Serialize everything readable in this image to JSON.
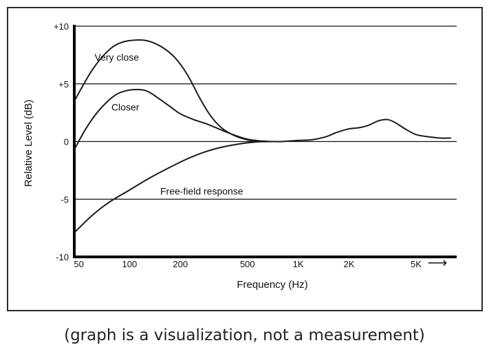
{
  "chart_data": {
    "type": "line",
    "title": "",
    "xlabel": "Frequency (Hz)",
    "ylabel": "Relative Level (dB)",
    "x_scale": "log",
    "xlim": [
      47,
      8700
    ],
    "ylim": [
      -10,
      10
    ],
    "x_ticks": [
      {
        "value": 50,
        "label": "50"
      },
      {
        "value": 100,
        "label": "100"
      },
      {
        "value": 200,
        "label": "200"
      },
      {
        "value": 500,
        "label": "500"
      },
      {
        "value": 1000,
        "label": "1K"
      },
      {
        "value": 2000,
        "label": "2K"
      },
      {
        "value": 5000,
        "label": "5K"
      }
    ],
    "y_ticks": [
      {
        "value": 10,
        "label": "+10"
      },
      {
        "value": 5,
        "label": "+5"
      },
      {
        "value": 0,
        "label": "0"
      },
      {
        "value": -5,
        "label": "-5"
      },
      {
        "value": -10,
        "label": "-10"
      }
    ],
    "gridlines_y": [
      10,
      5,
      0,
      -5
    ],
    "series": [
      {
        "name": "Very close",
        "label_at": {
          "x": 62,
          "y": 7.3
        },
        "x": [
          47,
          60,
          75,
          90,
          110,
          130,
          155,
          185,
          220,
          260,
          300,
          350,
          420,
          500,
          600,
          700
        ],
        "y": [
          3.5,
          6.2,
          7.9,
          8.6,
          8.8,
          8.7,
          8.2,
          7.3,
          5.8,
          3.8,
          2.3,
          1.2,
          0.5,
          0.15,
          0.0,
          0.0
        ]
      },
      {
        "name": "Closer",
        "label_at": {
          "x": 78,
          "y": 3.0
        },
        "x": [
          47,
          55,
          65,
          80,
          95,
          115,
          130,
          150,
          175,
          200,
          240,
          290,
          350,
          420,
          500,
          600,
          700
        ],
        "y": [
          -0.7,
          1.1,
          2.6,
          3.9,
          4.4,
          4.5,
          4.3,
          3.7,
          3.0,
          2.4,
          1.9,
          1.5,
          1.0,
          0.55,
          0.2,
          0.05,
          0.0
        ]
      },
      {
        "name": "Free-field response",
        "label_at": {
          "x": 152,
          "y": -4.3
        },
        "x": [
          47,
          60,
          75,
          100,
          130,
          170,
          220,
          280,
          350,
          450,
          550,
          650,
          800,
          1000,
          1200,
          1450,
          1700,
          2000,
          2300,
          2600,
          3000,
          3400,
          3800,
          4300,
          5000,
          6000,
          7000,
          8000
        ],
        "y": [
          -7.9,
          -6.4,
          -5.3,
          -4.2,
          -3.2,
          -2.3,
          -1.5,
          -0.9,
          -0.5,
          -0.2,
          -0.05,
          0.0,
          0.0,
          0.1,
          0.15,
          0.4,
          0.8,
          1.1,
          1.2,
          1.4,
          1.8,
          1.9,
          1.6,
          1.1,
          0.6,
          0.4,
          0.3,
          0.3
        ]
      }
    ]
  },
  "arrow": "⟶",
  "caption": "(graph is a visualization, not a measurement)"
}
